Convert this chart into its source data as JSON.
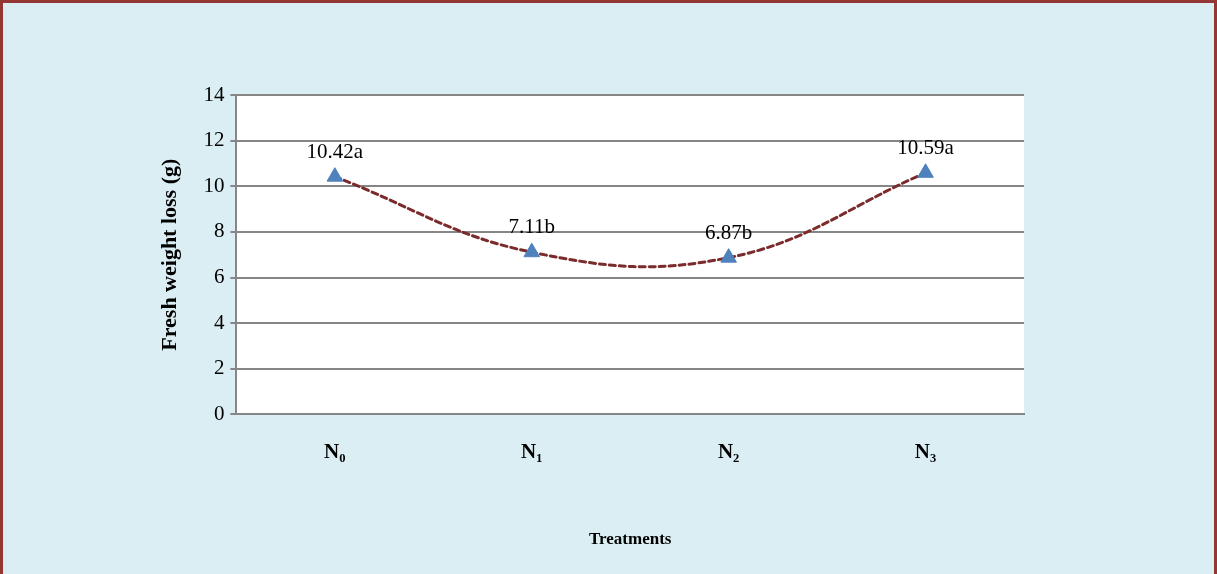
{
  "chart_data": {
    "type": "line",
    "xlabel": "Treatments",
    "ylabel": "Fresh weight loss (g)",
    "categories": [
      "N₀",
      "N₁",
      "N₂",
      "N₃"
    ],
    "series": [
      {
        "color": "#7b2b2b",
        "colors": [
          "#4f81bd",
          "#4f81bd",
          "#4f81bd",
          "#4f81bd"
        ],
        "values": [
          10.42,
          7.11,
          6.87,
          10.59
        ],
        "value_labels": [
          "10.42a",
          "7.11b",
          "6.87b",
          "10.59a"
        ]
      }
    ],
    "ylim": [
      0,
      14
    ],
    "yticks": [
      0,
      2,
      4,
      6,
      8,
      10,
      12,
      14
    ],
    "grid": "y",
    "legend": false,
    "marker": "triangle",
    "line_style": "dashed"
  }
}
